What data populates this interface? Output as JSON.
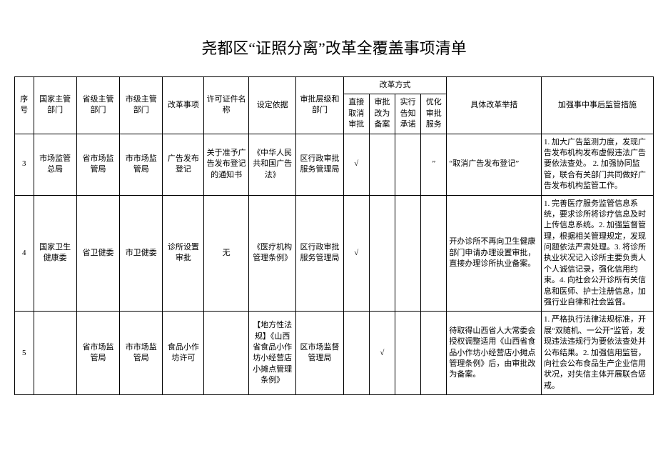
{
  "title": "尧都区“证照分离”改革全覆盖事项清单",
  "headers": {
    "seq": "序号",
    "national": "国家主管部门",
    "prov": "省级主管部门",
    "city": "市级主管部门",
    "item": "改革事项",
    "cert": "许可证件名称",
    "basis": "设定依据",
    "level": "审批层级和部门",
    "reform_mode": "改革方式",
    "m_cancel": "直接取消审批",
    "m_record": "审批改为备案",
    "m_notify": "实行告知承诺",
    "m_opt": "优化审批服务",
    "measures": "具体改革举措",
    "supervision": "加强事中事后监管措施"
  },
  "rows": [
    {
      "seq": "3",
      "national": "市场监管总局",
      "prov": "省市场监管局",
      "city": "市市场监管局",
      "item": "广告发布登记",
      "cert": "关于准予广告发布登记的通知书",
      "basis": "《中华人民共和国广告法》",
      "level": "区行政审批服务管理局",
      "m1": "√",
      "m2": "",
      "m3": "",
      "m4": "”",
      "measures": "“取消广告发布登记”",
      "supervision": "1. 加大广告监测力度，发现广告发布机构发布虚假违法广告要依法查处。 2. 加强协同监管，联合有关部门共同做好广告发布机构监管工作。"
    },
    {
      "seq": "4",
      "national": "国家卫生健康委",
      "prov": "省卫健委",
      "city": "市卫健委",
      "item": "诊所设置审批",
      "cert": "无",
      "basis": "《医疗机构管理条例》",
      "level": "区行政审批服务管理局",
      "m1": "√",
      "m2": "",
      "m3": "",
      "m4": "",
      "measures": "开办诊所不再向卫生健康部门申请办理设置审批，直接办理诊所执业备案。",
      "supervision": "1. 完善医疗服务监管信息系统，要求诊所将诊疗信息及时上传信息系统。2. 加强监督管理，根据相关管理规定，发现问题依法严肃处理。3. 将诊所执业状况记入诊所主要负责人个人诚信记录，强化信用约束。4. 向社会公开诊所有关信息和医师、护士注册信息，加强行业自律和社会监督。"
    },
    {
      "seq": "5",
      "national": "",
      "prov": "省市场监管局",
      "city": "市市场监管局",
      "item": "食品小作坊许可",
      "cert": "",
      "basis": "【地方性法规】《山西省食品小作坊小经营店小摊点管理条例》",
      "level": "区市场监督管理局",
      "m1": "",
      "m2": "√",
      "m3": "",
      "m4": "",
      "measures": "待取得山西省人大常委会授权调整适用《山西省食品小作坊小经营店小摊点管理条例》后，由审批改为备案。",
      "supervision": "1. 严格执行法律法规标准，开展“双随机、一公开”监管，发现违法违规行为要依法查处并公布结果。2. 加强信用监管，向社会公布食品生产企业信用状况，对失信主体开展联合惩戒。"
    }
  ]
}
